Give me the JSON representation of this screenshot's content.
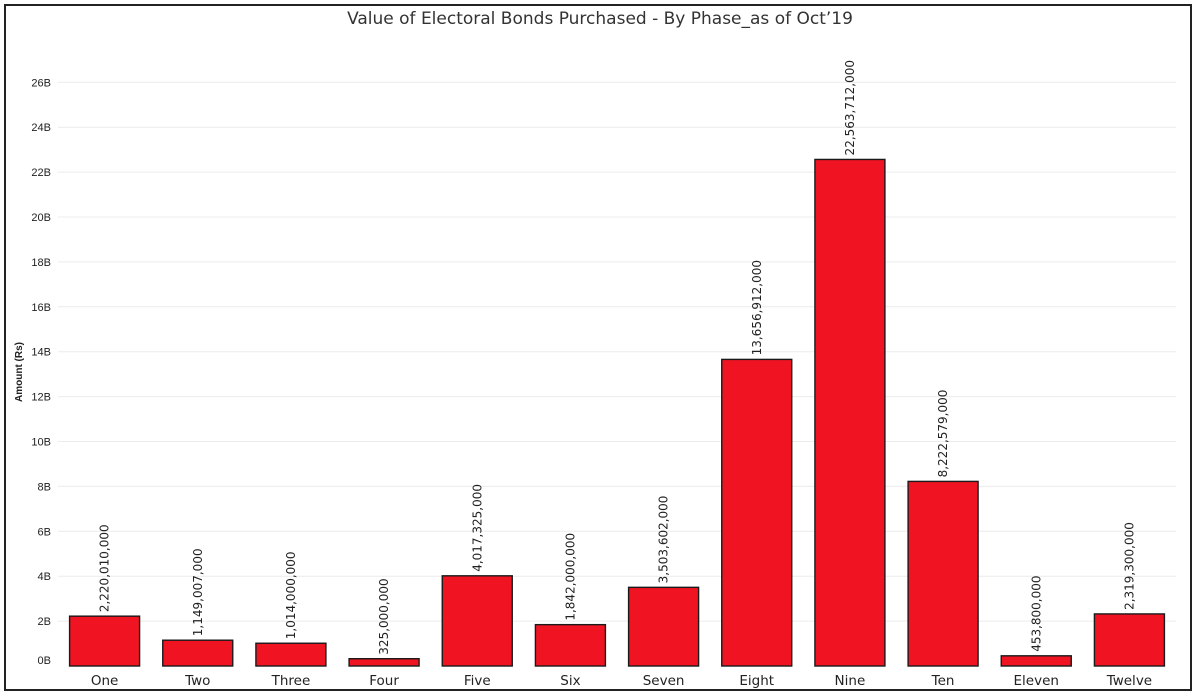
{
  "chart_data": {
    "type": "bar",
    "title": "Value of Electoral Bonds Purchased - By Phase_as of Oct’19",
    "xlabel": "",
    "ylabel": "Amount (Rs)",
    "categories": [
      "One",
      "Two",
      "Three",
      "Four",
      "Five",
      "Six",
      "Seven",
      "Eight",
      "Nine",
      "Ten",
      "Eleven",
      "Twelve"
    ],
    "values": [
      2220010000,
      1149007000,
      1014000000,
      325000000,
      4017325000,
      1842000000,
      3503602000,
      13656912000,
      22563712000,
      8222579000,
      453800000,
      2319300000
    ],
    "data_labels": [
      "2,220,010,000",
      "1,149,007,000",
      "1,014,000,000",
      "325,000,000",
      "4,017,325,000",
      "1,842,000,000",
      "3,503,602,000",
      "13,656,912,000",
      "22,563,712,000",
      "8,222,579,000",
      "453,800,000",
      "2,319,300,000"
    ],
    "yticks": [
      0,
      2000000000,
      4000000000,
      6000000000,
      8000000000,
      10000000000,
      12000000000,
      14000000000,
      16000000000,
      18000000000,
      20000000000,
      22000000000,
      24000000000,
      26000000000
    ],
    "ytick_labels": [
      "0B",
      "2B",
      "4B",
      "6B",
      "8B",
      "10B",
      "12B",
      "14B",
      "16B",
      "18B",
      "20B",
      "22B",
      "24B",
      "26B"
    ],
    "ylim": [
      0,
      27000000000
    ],
    "grid": true,
    "colors": {
      "bar": "#f01423",
      "bar_outline": "#1a1a1a"
    }
  }
}
